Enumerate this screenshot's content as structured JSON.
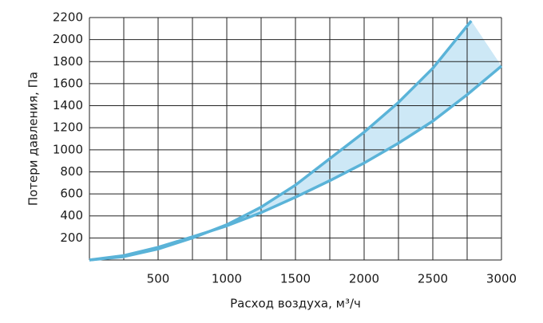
{
  "chart_data": {
    "type": "line",
    "y_label": "Потери давления, Па",
    "x_label": "Расход воздуха, м³/ч",
    "xlim": [
      0,
      3000
    ],
    "xticks": [
      500,
      1000,
      1500,
      2000,
      2500,
      3000
    ],
    "x_minor_grid": [
      250,
      750,
      1250,
      1750,
      2250,
      2750
    ],
    "ylim": [
      0,
      2200
    ],
    "yticks": [
      200,
      400,
      600,
      800,
      1000,
      1200,
      1400,
      1600,
      1800,
      2000,
      2200
    ],
    "grid": true,
    "fill_between": true,
    "fill_color": "#cde8f6",
    "series": [
      {
        "color": "#5ab3d8",
        "x": [
          0,
          250,
          500,
          750,
          1000,
          1250,
          1500,
          1750,
          2000,
          2250,
          2500,
          2780
        ],
        "values": [
          0,
          30,
          100,
          200,
          320,
          480,
          680,
          920,
          1160,
          1430,
          1740,
          2170
        ]
      },
      {
        "color": "#5ab3d8",
        "x": [
          0,
          250,
          500,
          750,
          1000,
          1250,
          1500,
          1750,
          2000,
          2250,
          2500,
          2750,
          3000
        ],
        "values": [
          0,
          40,
          115,
          210,
          310,
          430,
          570,
          720,
          880,
          1060,
          1260,
          1500,
          1760
        ]
      }
    ]
  }
}
